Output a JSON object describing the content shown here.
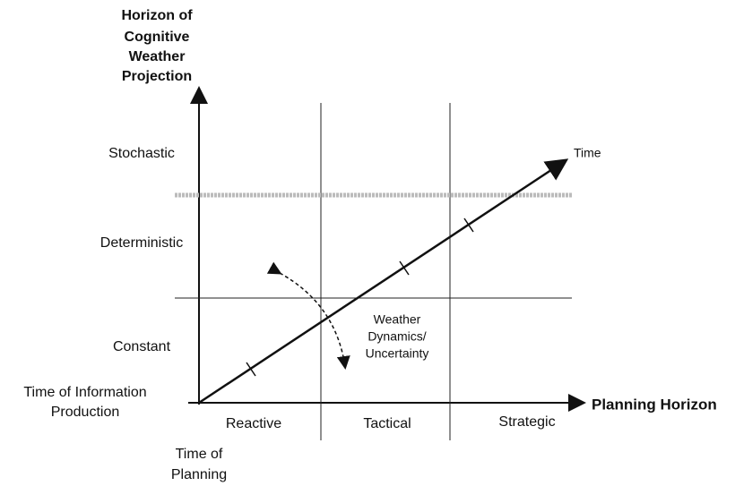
{
  "y_axis_title": [
    "Horizon of",
    "Cognitive",
    "Weather",
    "Projection"
  ],
  "x_axis_title": "Planning Horizon",
  "rows": [
    "Stochastic",
    "Deterministic",
    "Constant"
  ],
  "columns": [
    "Reactive",
    "Tactical",
    "Strategic"
  ],
  "origin_y_label": [
    "Time of Information",
    "Production"
  ],
  "origin_x_label": [
    "Time of",
    "Planning"
  ],
  "time_label": "Time",
  "uncertainty_label": [
    "Weather",
    "Dynamics/",
    "Uncertainty"
  ]
}
